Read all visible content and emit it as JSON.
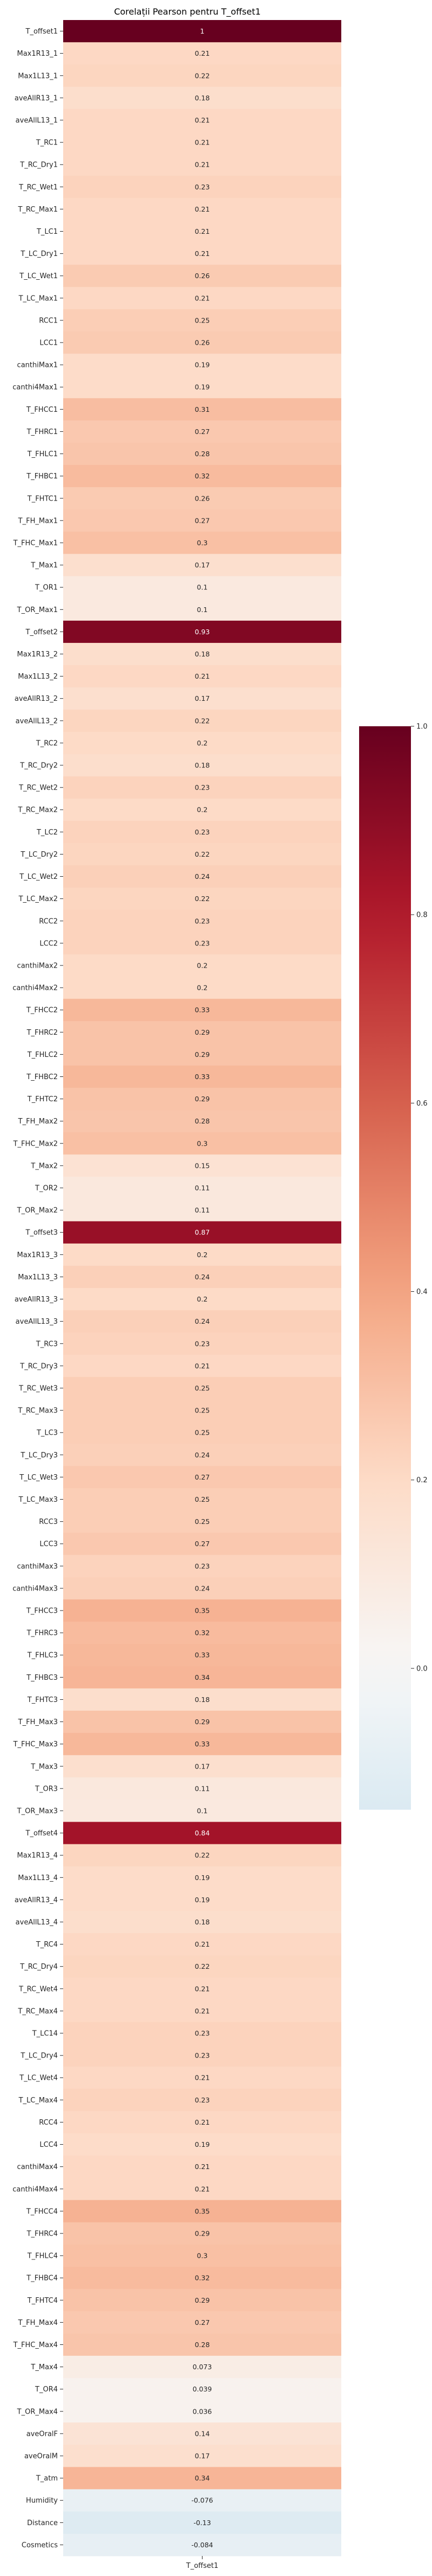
{
  "chart_data": {
    "type": "heatmap",
    "title": "Corelații Pearson pentru T_offset1",
    "x_categories": [
      "T_offset1"
    ],
    "colormap": "RdBu_r",
    "colorbar": {
      "vmin": -0.15,
      "vmax": 1.0,
      "ticks": [
        0.0,
        0.2,
        0.4,
        0.6,
        0.8,
        1.0
      ],
      "tick_labels": [
        "0.0",
        "0.2",
        "0.4",
        "0.6",
        "0.8",
        "1.0"
      ]
    },
    "rows": [
      {
        "label": "T_offset1",
        "value": 1,
        "text": "1"
      },
      {
        "label": "Max1R13_1",
        "value": 0.21,
        "text": "0.21"
      },
      {
        "label": "Max1L13_1",
        "value": 0.22,
        "text": "0.22"
      },
      {
        "label": "aveAllR13_1",
        "value": 0.18,
        "text": "0.18"
      },
      {
        "label": "aveAllL13_1",
        "value": 0.21,
        "text": "0.21"
      },
      {
        "label": "T_RC1",
        "value": 0.21,
        "text": "0.21"
      },
      {
        "label": "T_RC_Dry1",
        "value": 0.21,
        "text": "0.21"
      },
      {
        "label": "T_RC_Wet1",
        "value": 0.23,
        "text": "0.23"
      },
      {
        "label": "T_RC_Max1",
        "value": 0.21,
        "text": "0.21"
      },
      {
        "label": "T_LC1",
        "value": 0.21,
        "text": "0.21"
      },
      {
        "label": "T_LC_Dry1",
        "value": 0.21,
        "text": "0.21"
      },
      {
        "label": "T_LC_Wet1",
        "value": 0.26,
        "text": "0.26"
      },
      {
        "label": "T_LC_Max1",
        "value": 0.21,
        "text": "0.21"
      },
      {
        "label": "RCC1",
        "value": 0.25,
        "text": "0.25"
      },
      {
        "label": "LCC1",
        "value": 0.26,
        "text": "0.26"
      },
      {
        "label": "canthiMax1",
        "value": 0.19,
        "text": "0.19"
      },
      {
        "label": "canthi4Max1",
        "value": 0.19,
        "text": "0.19"
      },
      {
        "label": "T_FHCC1",
        "value": 0.31,
        "text": "0.31"
      },
      {
        "label": "T_FHRC1",
        "value": 0.27,
        "text": "0.27"
      },
      {
        "label": "T_FHLC1",
        "value": 0.28,
        "text": "0.28"
      },
      {
        "label": "T_FHBC1",
        "value": 0.32,
        "text": "0.32"
      },
      {
        "label": "T_FHTC1",
        "value": 0.26,
        "text": "0.26"
      },
      {
        "label": "T_FH_Max1",
        "value": 0.27,
        "text": "0.27"
      },
      {
        "label": "T_FHC_Max1",
        "value": 0.3,
        "text": "0.3"
      },
      {
        "label": "T_Max1",
        "value": 0.17,
        "text": "0.17"
      },
      {
        "label": "T_OR1",
        "value": 0.1,
        "text": "0.1"
      },
      {
        "label": "T_OR_Max1",
        "value": 0.1,
        "text": "0.1"
      },
      {
        "label": "T_offset2",
        "value": 0.93,
        "text": "0.93"
      },
      {
        "label": "Max1R13_2",
        "value": 0.18,
        "text": "0.18"
      },
      {
        "label": "Max1L13_2",
        "value": 0.21,
        "text": "0.21"
      },
      {
        "label": "aveAllR13_2",
        "value": 0.17,
        "text": "0.17"
      },
      {
        "label": "aveAllL13_2",
        "value": 0.22,
        "text": "0.22"
      },
      {
        "label": "T_RC2",
        "value": 0.2,
        "text": "0.2"
      },
      {
        "label": "T_RC_Dry2",
        "value": 0.18,
        "text": "0.18"
      },
      {
        "label": "T_RC_Wet2",
        "value": 0.23,
        "text": "0.23"
      },
      {
        "label": "T_RC_Max2",
        "value": 0.2,
        "text": "0.2"
      },
      {
        "label": "T_LC2",
        "value": 0.23,
        "text": "0.23"
      },
      {
        "label": "T_LC_Dry2",
        "value": 0.22,
        "text": "0.22"
      },
      {
        "label": "T_LC_Wet2",
        "value": 0.24,
        "text": "0.24"
      },
      {
        "label": "T_LC_Max2",
        "value": 0.22,
        "text": "0.22"
      },
      {
        "label": "RCC2",
        "value": 0.23,
        "text": "0.23"
      },
      {
        "label": "LCC2",
        "value": 0.23,
        "text": "0.23"
      },
      {
        "label": "canthiMax2",
        "value": 0.2,
        "text": "0.2"
      },
      {
        "label": "canthi4Max2",
        "value": 0.2,
        "text": "0.2"
      },
      {
        "label": "T_FHCC2",
        "value": 0.33,
        "text": "0.33"
      },
      {
        "label": "T_FHRC2",
        "value": 0.29,
        "text": "0.29"
      },
      {
        "label": "T_FHLC2",
        "value": 0.29,
        "text": "0.29"
      },
      {
        "label": "T_FHBC2",
        "value": 0.33,
        "text": "0.33"
      },
      {
        "label": "T_FHTC2",
        "value": 0.29,
        "text": "0.29"
      },
      {
        "label": "T_FH_Max2",
        "value": 0.28,
        "text": "0.28"
      },
      {
        "label": "T_FHC_Max2",
        "value": 0.3,
        "text": "0.3"
      },
      {
        "label": "T_Max2",
        "value": 0.15,
        "text": "0.15"
      },
      {
        "label": "T_OR2",
        "value": 0.11,
        "text": "0.11"
      },
      {
        "label": "T_OR_Max2",
        "value": 0.11,
        "text": "0.11"
      },
      {
        "label": "T_offset3",
        "value": 0.87,
        "text": "0.87"
      },
      {
        "label": "Max1R13_3",
        "value": 0.2,
        "text": "0.2"
      },
      {
        "label": "Max1L13_3",
        "value": 0.24,
        "text": "0.24"
      },
      {
        "label": "aveAllR13_3",
        "value": 0.2,
        "text": "0.2"
      },
      {
        "label": "aveAllL13_3",
        "value": 0.24,
        "text": "0.24"
      },
      {
        "label": "T_RC3",
        "value": 0.23,
        "text": "0.23"
      },
      {
        "label": "T_RC_Dry3",
        "value": 0.21,
        "text": "0.21"
      },
      {
        "label": "T_RC_Wet3",
        "value": 0.25,
        "text": "0.25"
      },
      {
        "label": "T_RC_Max3",
        "value": 0.25,
        "text": "0.25"
      },
      {
        "label": "T_LC3",
        "value": 0.25,
        "text": "0.25"
      },
      {
        "label": "T_LC_Dry3",
        "value": 0.24,
        "text": "0.24"
      },
      {
        "label": "T_LC_Wet3",
        "value": 0.27,
        "text": "0.27"
      },
      {
        "label": "T_LC_Max3",
        "value": 0.25,
        "text": "0.25"
      },
      {
        "label": "RCC3",
        "value": 0.25,
        "text": "0.25"
      },
      {
        "label": "LCC3",
        "value": 0.27,
        "text": "0.27"
      },
      {
        "label": "canthiMax3",
        "value": 0.23,
        "text": "0.23"
      },
      {
        "label": "canthi4Max3",
        "value": 0.24,
        "text": "0.24"
      },
      {
        "label": "T_FHCC3",
        "value": 0.35,
        "text": "0.35"
      },
      {
        "label": "T_FHRC3",
        "value": 0.32,
        "text": "0.32"
      },
      {
        "label": "T_FHLC3",
        "value": 0.33,
        "text": "0.33"
      },
      {
        "label": "T_FHBC3",
        "value": 0.34,
        "text": "0.34"
      },
      {
        "label": "T_FHTC3",
        "value": 0.18,
        "text": "0.18"
      },
      {
        "label": "T_FH_Max3",
        "value": 0.29,
        "text": "0.29"
      },
      {
        "label": "T_FHC_Max3",
        "value": 0.33,
        "text": "0.33"
      },
      {
        "label": "T_Max3",
        "value": 0.17,
        "text": "0.17"
      },
      {
        "label": "T_OR3",
        "value": 0.11,
        "text": "0.11"
      },
      {
        "label": "T_OR_Max3",
        "value": 0.1,
        "text": "0.1"
      },
      {
        "label": "T_offset4",
        "value": 0.84,
        "text": "0.84"
      },
      {
        "label": "Max1R13_4",
        "value": 0.22,
        "text": "0.22"
      },
      {
        "label": "Max1L13_4",
        "value": 0.19,
        "text": "0.19"
      },
      {
        "label": "aveAllR13_4",
        "value": 0.19,
        "text": "0.19"
      },
      {
        "label": "aveAllL13_4",
        "value": 0.18,
        "text": "0.18"
      },
      {
        "label": "T_RC4",
        "value": 0.21,
        "text": "0.21"
      },
      {
        "label": "T_RC_Dry4",
        "value": 0.22,
        "text": "0.22"
      },
      {
        "label": "T_RC_Wet4",
        "value": 0.21,
        "text": "0.21"
      },
      {
        "label": "T_RC_Max4",
        "value": 0.21,
        "text": "0.21"
      },
      {
        "label": "T_LC14",
        "value": 0.23,
        "text": "0.23"
      },
      {
        "label": "T_LC_Dry4",
        "value": 0.23,
        "text": "0.23"
      },
      {
        "label": "T_LC_Wet4",
        "value": 0.21,
        "text": "0.21"
      },
      {
        "label": "T_LC_Max4",
        "value": 0.23,
        "text": "0.23"
      },
      {
        "label": "RCC4",
        "value": 0.21,
        "text": "0.21"
      },
      {
        "label": "LCC4",
        "value": 0.19,
        "text": "0.19"
      },
      {
        "label": "canthiMax4",
        "value": 0.21,
        "text": "0.21"
      },
      {
        "label": "canthi4Max4",
        "value": 0.21,
        "text": "0.21"
      },
      {
        "label": "T_FHCC4",
        "value": 0.35,
        "text": "0.35"
      },
      {
        "label": "T_FHRC4",
        "value": 0.29,
        "text": "0.29"
      },
      {
        "label": "T_FHLC4",
        "value": 0.3,
        "text": "0.3"
      },
      {
        "label": "T_FHBC4",
        "value": 0.32,
        "text": "0.32"
      },
      {
        "label": "T_FHTC4",
        "value": 0.29,
        "text": "0.29"
      },
      {
        "label": "T_FH_Max4",
        "value": 0.27,
        "text": "0.27"
      },
      {
        "label": "T_FHC_Max4",
        "value": 0.28,
        "text": "0.28"
      },
      {
        "label": "T_Max4",
        "value": 0.073,
        "text": "0.073"
      },
      {
        "label": "T_OR4",
        "value": 0.039,
        "text": "0.039"
      },
      {
        "label": "T_OR_Max4",
        "value": 0.036,
        "text": "0.036"
      },
      {
        "label": "aveOralF",
        "value": 0.14,
        "text": "0.14"
      },
      {
        "label": "aveOralM",
        "value": 0.17,
        "text": "0.17"
      },
      {
        "label": "T_atm",
        "value": 0.34,
        "text": "0.34"
      },
      {
        "label": "Humidity",
        "value": -0.076,
        "text": "-0.076"
      },
      {
        "label": "Distance",
        "value": -0.13,
        "text": "-0.13"
      },
      {
        "label": "Cosmetics",
        "value": -0.084,
        "text": "-0.084"
      }
    ]
  }
}
